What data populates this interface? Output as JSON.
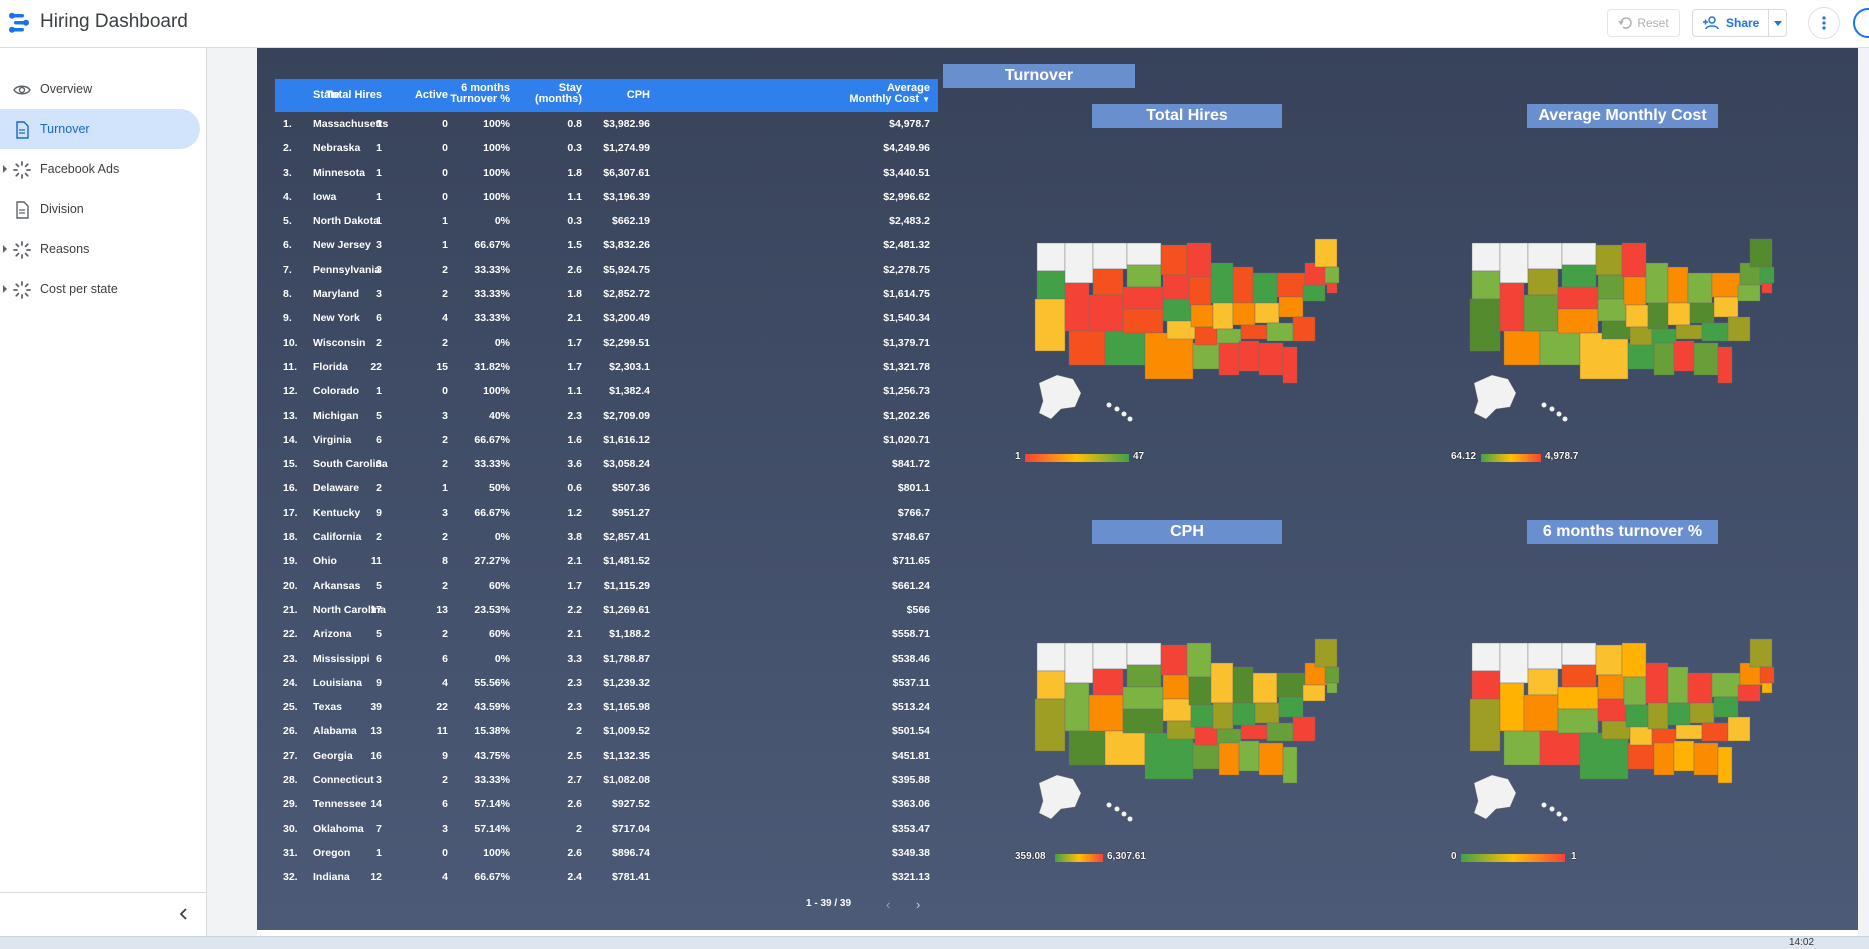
{
  "app": {
    "title": "Hiring Dashboard"
  },
  "toolbar": {
    "reset_label": "Reset",
    "share_label": "Share"
  },
  "sidebar": {
    "items": [
      {
        "label": "Overview",
        "icon": "eye-icon",
        "active": false,
        "expandable": false
      },
      {
        "label": "Turnover",
        "icon": "page-icon",
        "active": true,
        "expandable": false
      },
      {
        "label": "Facebook Ads",
        "icon": "spinner-icon",
        "active": false,
        "expandable": true
      },
      {
        "label": "Division",
        "icon": "page-icon",
        "active": false,
        "expandable": false
      },
      {
        "label": "Reasons",
        "icon": "spinner-icon",
        "active": false,
        "expandable": true
      },
      {
        "label": "Cost per state",
        "icon": "spinner-icon",
        "active": false,
        "expandable": true
      }
    ]
  },
  "table": {
    "headers": {
      "state": "State",
      "total_hires": "Total Hires",
      "active": "Active",
      "turnover_1": "6 months",
      "turnover_2": "Turnover %",
      "stay_1": "Stay",
      "stay_2": "(months)",
      "cph": "CPH",
      "cost_1": "Average",
      "cost_2": "Monthly Cost"
    },
    "rows": [
      [
        "1.",
        "Massachusetts",
        "1",
        "0",
        "100%",
        "0.8",
        "$3,982.96",
        "$4,978.7"
      ],
      [
        "2.",
        "Nebraska",
        "1",
        "0",
        "100%",
        "0.3",
        "$1,274.99",
        "$4,249.96"
      ],
      [
        "3.",
        "Minnesota",
        "1",
        "0",
        "100%",
        "1.8",
        "$6,307.61",
        "$3,440.51"
      ],
      [
        "4.",
        "Iowa",
        "1",
        "0",
        "100%",
        "1.1",
        "$3,196.39",
        "$2,996.62"
      ],
      [
        "5.",
        "North Dakota",
        "1",
        "1",
        "0%",
        "0.3",
        "$662.19",
        "$2,483.2"
      ],
      [
        "6.",
        "New Jersey",
        "3",
        "1",
        "66.67%",
        "1.5",
        "$3,832.26",
        "$2,481.32"
      ],
      [
        "7.",
        "Pennsylvania",
        "3",
        "2",
        "33.33%",
        "2.6",
        "$5,924.75",
        "$2,278.75"
      ],
      [
        "8.",
        "Maryland",
        "3",
        "2",
        "33.33%",
        "1.8",
        "$2,852.72",
        "$1,614.75"
      ],
      [
        "9.",
        "New York",
        "6",
        "4",
        "33.33%",
        "2.1",
        "$3,200.49",
        "$1,540.34"
      ],
      [
        "10.",
        "Wisconsin",
        "2",
        "2",
        "0%",
        "1.7",
        "$2,299.51",
        "$1,379.71"
      ],
      [
        "11.",
        "Florida",
        "22",
        "15",
        "31.82%",
        "1.7",
        "$2,303.1",
        "$1,321.78"
      ],
      [
        "12.",
        "Colorado",
        "1",
        "0",
        "100%",
        "1.1",
        "$1,382.4",
        "$1,256.73"
      ],
      [
        "13.",
        "Michigan",
        "5",
        "3",
        "40%",
        "2.3",
        "$2,709.09",
        "$1,202.26"
      ],
      [
        "14.",
        "Virginia",
        "6",
        "2",
        "66.67%",
        "1.6",
        "$1,616.12",
        "$1,020.71"
      ],
      [
        "15.",
        "South Carolina",
        "3",
        "2",
        "33.33%",
        "3.6",
        "$3,058.24",
        "$841.72"
      ],
      [
        "16.",
        "Delaware",
        "2",
        "1",
        "50%",
        "0.6",
        "$507.36",
        "$801.1"
      ],
      [
        "17.",
        "Kentucky",
        "9",
        "3",
        "66.67%",
        "1.2",
        "$951.27",
        "$766.7"
      ],
      [
        "18.",
        "California",
        "2",
        "2",
        "0%",
        "3.8",
        "$2,857.41",
        "$748.67"
      ],
      [
        "19.",
        "Ohio",
        "11",
        "8",
        "27.27%",
        "2.1",
        "$1,481.52",
        "$711.65"
      ],
      [
        "20.",
        "Arkansas",
        "5",
        "2",
        "60%",
        "1.7",
        "$1,115.29",
        "$661.24"
      ],
      [
        "21.",
        "North Carolina",
        "17",
        "13",
        "23.53%",
        "2.2",
        "$1,269.61",
        "$566"
      ],
      [
        "22.",
        "Arizona",
        "5",
        "2",
        "60%",
        "2.1",
        "$1,188.2",
        "$558.71"
      ],
      [
        "23.",
        "Mississippi",
        "6",
        "6",
        "0%",
        "3.3",
        "$1,788.87",
        "$538.46"
      ],
      [
        "24.",
        "Louisiana",
        "9",
        "4",
        "55.56%",
        "2.3",
        "$1,239.32",
        "$537.11"
      ],
      [
        "25.",
        "Texas",
        "39",
        "22",
        "43.59%",
        "2.3",
        "$1,165.98",
        "$513.24"
      ],
      [
        "26.",
        "Alabama",
        "13",
        "11",
        "15.38%",
        "2",
        "$1,009.52",
        "$501.54"
      ],
      [
        "27.",
        "Georgia",
        "16",
        "9",
        "43.75%",
        "2.5",
        "$1,132.35",
        "$451.81"
      ],
      [
        "28.",
        "Connecticut",
        "3",
        "2",
        "33.33%",
        "2.7",
        "$1,082.08",
        "$395.88"
      ],
      [
        "29.",
        "Tennessee",
        "14",
        "6",
        "57.14%",
        "2.6",
        "$927.52",
        "$363.06"
      ],
      [
        "30.",
        "Oklahoma",
        "7",
        "3",
        "57.14%",
        "2",
        "$717.04",
        "$353.47"
      ],
      [
        "31.",
        "Oregon",
        "1",
        "0",
        "100%",
        "2.6",
        "$896.74",
        "$349.38"
      ],
      [
        "32.",
        "Indiana",
        "12",
        "4",
        "66.67%",
        "2.4",
        "$781.41",
        "$321.13"
      ]
    ],
    "pagination": "1 - 39 / 39"
  },
  "page_title": "Turnover",
  "maps": [
    {
      "title": "Total Hires",
      "legend_min": "1",
      "legend_max": "47",
      "scale": "red-green",
      "colors": {
        "low": "#f44336",
        "mid": "#ffc107",
        "high": "#43a047"
      }
    },
    {
      "title": "Average Monthly Cost",
      "legend_min": "64.12",
      "legend_max": "4,978.7",
      "scale": "green-red",
      "colors": {
        "low": "#43a047",
        "mid": "#ffc107",
        "high": "#f44336"
      }
    },
    {
      "title": "CPH",
      "legend_min": "359.08",
      "legend_max": "6,307.61",
      "scale": "green-red",
      "colors": {
        "low": "#43a047",
        "mid": "#ffc107",
        "high": "#f44336"
      }
    },
    {
      "title": "6 months turnover %",
      "legend_min": "0",
      "legend_max": "1",
      "scale": "green-red",
      "colors": {
        "low": "#43a047",
        "mid": "#ffc107",
        "high": "#f44336"
      }
    }
  ],
  "taskbar": {
    "time": "14:02"
  }
}
